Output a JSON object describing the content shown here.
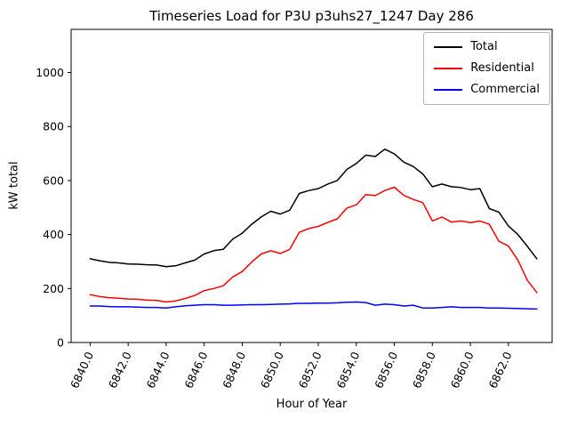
{
  "chart_data": {
    "type": "line",
    "title": "Timeseries Load for P3U p3uhs27_1247  Day 286",
    "xlabel": "Hour of Year",
    "ylabel": "kW total",
    "xlim": [
      6839.0,
      6864.3
    ],
    "ylim": [
      0,
      1160
    ],
    "grid": false,
    "xticks": [
      6840,
      6842,
      6844,
      6846,
      6848,
      6850,
      6852,
      6854,
      6856,
      6858,
      6860,
      6862
    ],
    "xtick_labels": [
      "6840.0",
      "6842.0",
      "6844.0",
      "6846.0",
      "6848.0",
      "6850.0",
      "6852.0",
      "6854.0",
      "6856.0",
      "6858.0",
      "6860.0",
      "6862.0"
    ],
    "yticks": [
      0,
      200,
      400,
      600,
      800,
      1000
    ],
    "ytick_labels": [
      "0",
      "200",
      "400",
      "600",
      "800",
      "1000"
    ],
    "legend": {
      "position": "upper right"
    },
    "x": [
      6840.0,
      6840.5,
      6841.0,
      6841.5,
      6842.0,
      6842.5,
      6843.0,
      6843.5,
      6844.0,
      6844.5,
      6845.0,
      6845.5,
      6846.0,
      6846.5,
      6847.0,
      6847.5,
      6848.0,
      6848.5,
      6849.0,
      6849.5,
      6850.0,
      6850.5,
      6851.0,
      6851.5,
      6852.0,
      6852.5,
      6853.0,
      6853.5,
      6854.0,
      6854.5,
      6855.0,
      6855.5,
      6856.0,
      6856.5,
      6857.0,
      6857.5,
      6858.0,
      6858.5,
      6859.0,
      6859.5,
      6860.0,
      6860.5,
      6861.0,
      6861.5,
      6862.0,
      6862.5,
      6863.0,
      6863.5
    ],
    "series": [
      {
        "name": "Total",
        "color": "#000000",
        "values": [
          310,
          303,
          297,
          295,
          291,
          290,
          288,
          287,
          281,
          284,
          295,
          305,
          328,
          340,
          345,
          383,
          405,
          438,
          465,
          486,
          476,
          490,
          552,
          563,
          570,
          587,
          600,
          641,
          663,
          694,
          689,
          716,
          699,
          668,
          652,
          624,
          577,
          587,
          577,
          574,
          566,
          570,
          496,
          483,
          432,
          400,
          356,
          310
        ]
      },
      {
        "name": "Residential",
        "color": "#ff0000",
        "values": [
          177,
          170,
          166,
          164,
          161,
          160,
          157,
          156,
          150,
          154,
          163,
          174,
          192,
          200,
          210,
          243,
          263,
          298,
          328,
          340,
          330,
          345,
          408,
          422,
          430,
          445,
          458,
          498,
          510,
          548,
          544,
          563,
          575,
          545,
          530,
          518,
          450,
          465,
          446,
          450,
          444,
          450,
          438,
          375,
          358,
          305,
          230,
          185
        ]
      },
      {
        "name": "Commercial",
        "color": "#0000ff",
        "values": [
          135,
          135,
          133,
          132,
          132,
          131,
          130,
          130,
          128,
          132,
          136,
          138,
          140,
          140,
          138,
          138,
          139,
          140,
          140,
          141,
          142,
          143,
          145,
          145,
          146,
          146,
          147,
          149,
          150,
          148,
          138,
          142,
          140,
          135,
          138,
          128,
          128,
          130,
          132,
          130,
          130,
          130,
          128,
          128,
          127,
          126,
          125,
          124
        ]
      }
    ]
  }
}
